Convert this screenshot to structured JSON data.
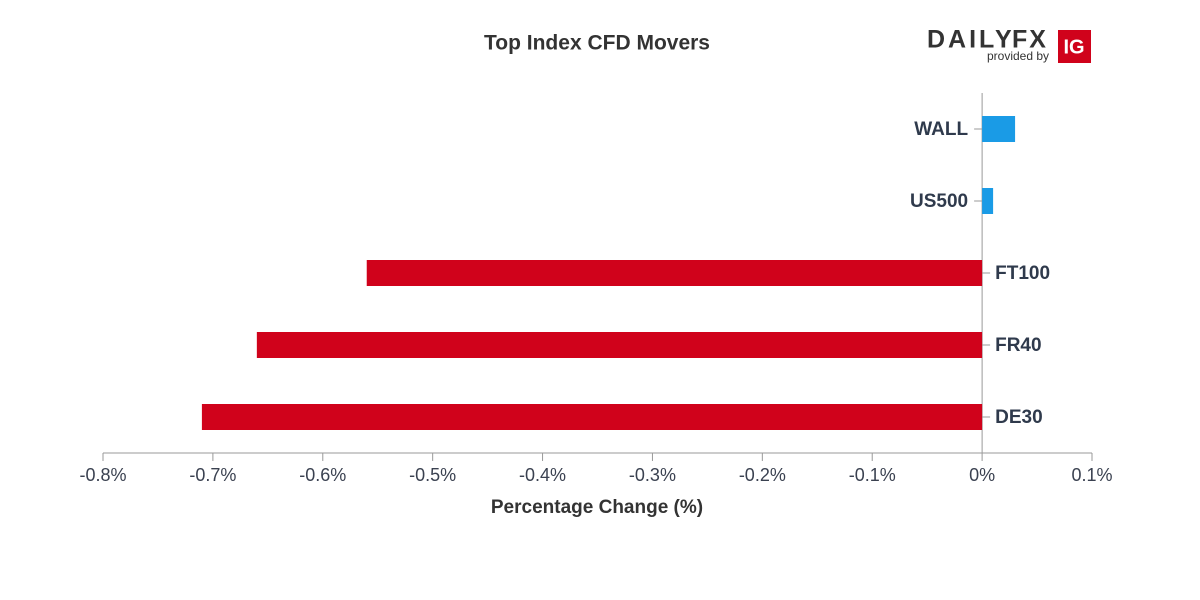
{
  "chart_data": {
    "type": "hbar",
    "title": "Top Index CFD Movers",
    "x_label": "Percentage Change (%)",
    "categories": [
      "WALL",
      "US500",
      "FT100",
      "FR40",
      "DE30"
    ],
    "values": [
      0.03,
      0.01,
      -0.56,
      -0.66,
      -0.71
    ],
    "positive_color": "#1a9be6",
    "negative_color": "#d0021b",
    "xlim": [
      -0.8,
      0.1
    ],
    "xticks": [
      {
        "value": -0.8,
        "label": "-0.8%"
      },
      {
        "value": -0.7,
        "label": "-0.7%"
      },
      {
        "value": -0.6,
        "label": "-0.6%"
      },
      {
        "value": -0.5,
        "label": "-0.5%"
      },
      {
        "value": -0.4,
        "label": "-0.4%"
      },
      {
        "value": -0.3,
        "label": "-0.3%"
      },
      {
        "value": -0.2,
        "label": "-0.2%"
      },
      {
        "value": -0.1,
        "label": "-0.1%"
      },
      {
        "value": 0,
        "label": "0%"
      },
      {
        "value": 0.1,
        "label": "0.1%"
      }
    ],
    "grid": false
  },
  "logo": {
    "brand_a": "DAILY",
    "brand_b": "FX",
    "tagline": "provided by",
    "badge": "IG"
  }
}
